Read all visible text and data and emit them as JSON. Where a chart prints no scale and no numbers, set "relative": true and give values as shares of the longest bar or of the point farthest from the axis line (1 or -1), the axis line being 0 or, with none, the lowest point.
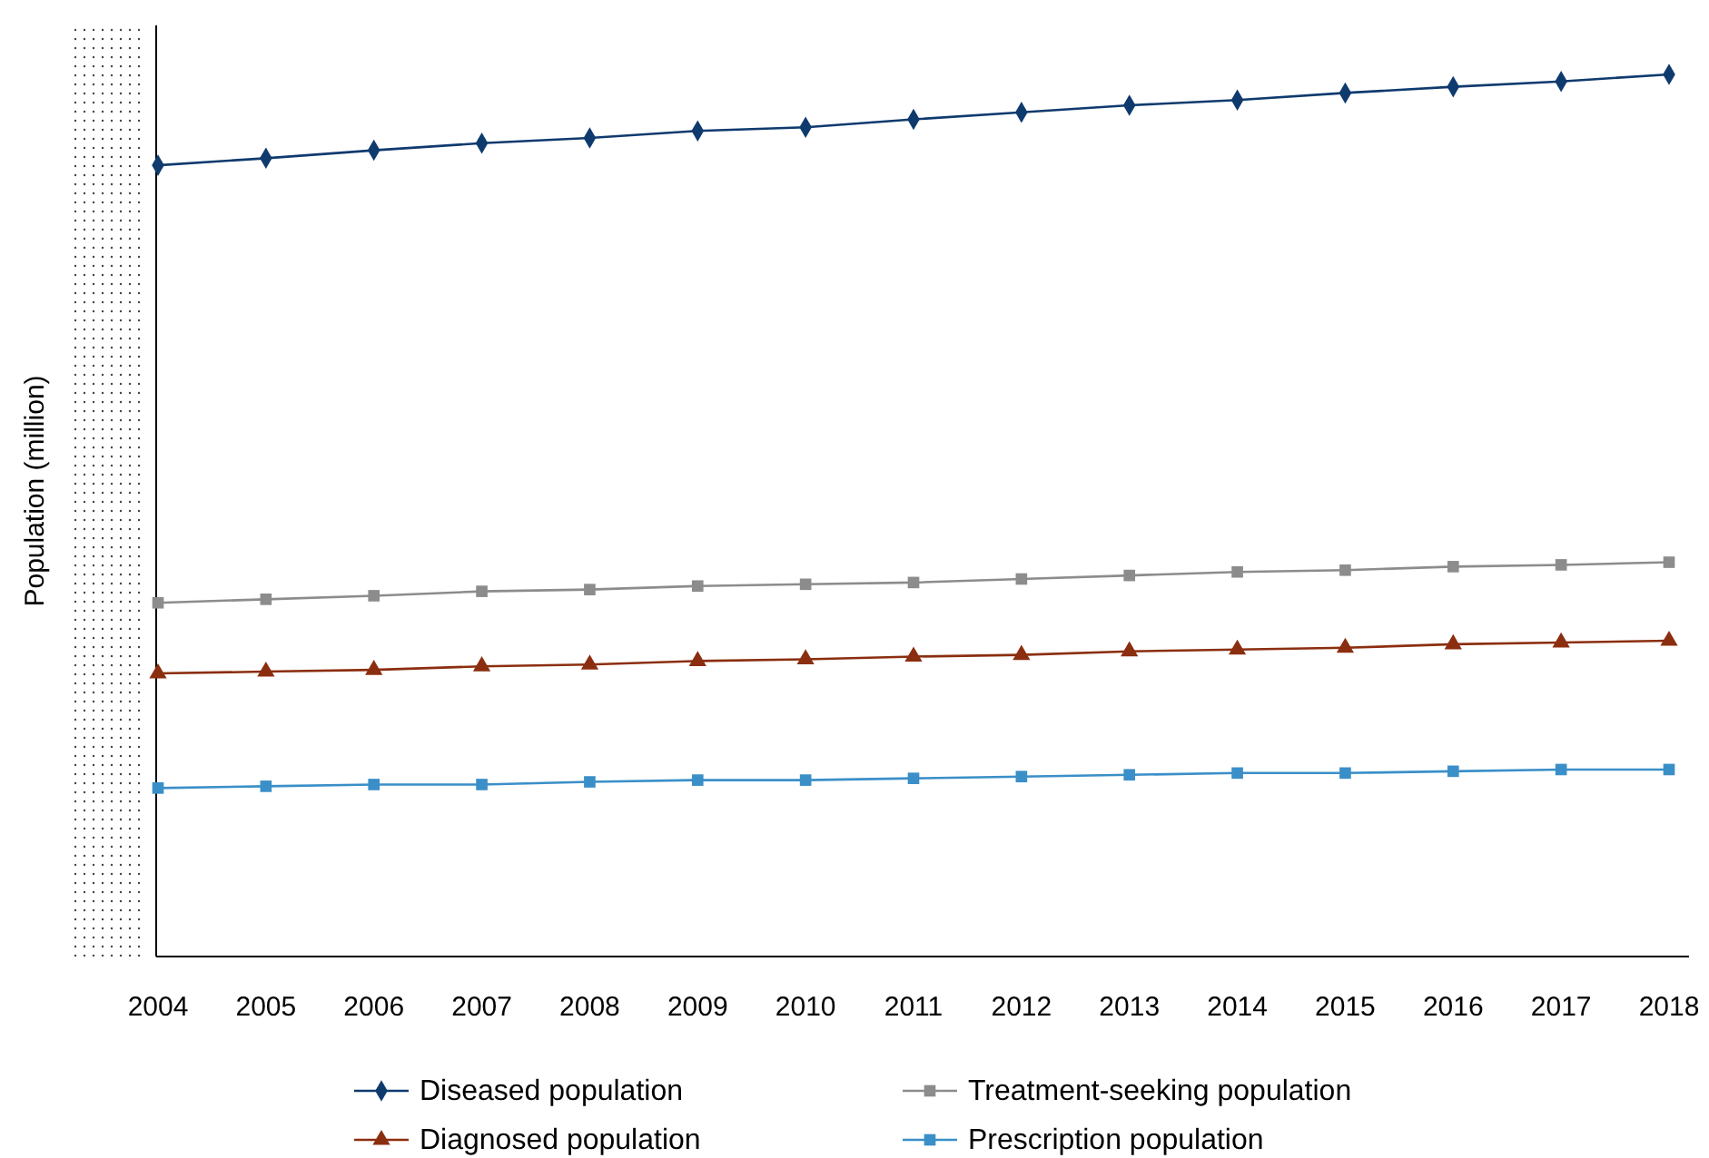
{
  "chart_data": {
    "type": "line",
    "relative": true,
    "ylabel": "Population (million)",
    "categories": [
      "2004",
      "2005",
      "2006",
      "2007",
      "2008",
      "2009",
      "2010",
      "2011",
      "2012",
      "2013",
      "2014",
      "2015",
      "2016",
      "2017",
      "2018"
    ],
    "legend": "bottom",
    "series": [
      {
        "name": "Diseased population",
        "color": "#0f3a6e",
        "marker": "diamond",
        "values": [
          0.897,
          0.905,
          0.914,
          0.922,
          0.928,
          0.936,
          0.94,
          0.949,
          0.957,
          0.965,
          0.971,
          0.979,
          0.986,
          0.992,
          1
        ]
      },
      {
        "name": "Treatment-seeking population",
        "color": "#8c8c8c",
        "marker": "square",
        "values": [
          0.401,
          0.405,
          0.409,
          0.414,
          0.416,
          0.42,
          0.422,
          0.424,
          0.428,
          0.432,
          0.436,
          0.438,
          0.442,
          0.444,
          0.447
        ]
      },
      {
        "name": "Diagnosed population",
        "color": "#8b2e0f",
        "marker": "triangle",
        "values": [
          0.321,
          0.323,
          0.325,
          0.329,
          0.331,
          0.335,
          0.337,
          0.34,
          0.342,
          0.346,
          0.348,
          0.35,
          0.354,
          0.356,
          0.358
        ]
      },
      {
        "name": "Prescription population",
        "color": "#3a8fc8",
        "marker": "square",
        "values": [
          0.191,
          0.193,
          0.195,
          0.195,
          0.198,
          0.2,
          0.2,
          0.202,
          0.204,
          0.206,
          0.208,
          0.208,
          0.21,
          0.212,
          0.212
        ]
      }
    ]
  }
}
